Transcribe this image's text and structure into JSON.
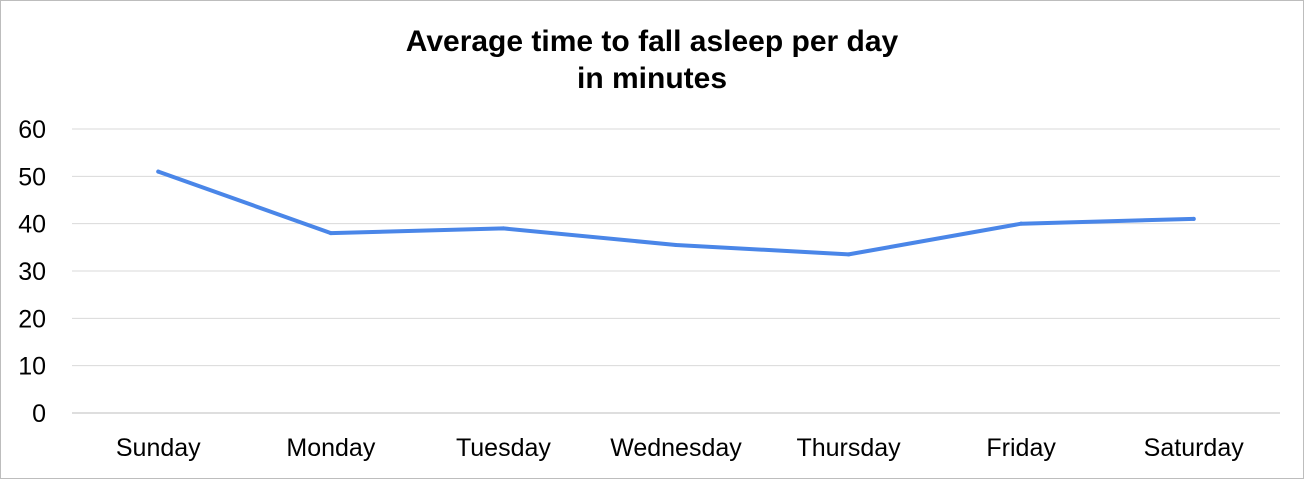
{
  "chart_data": {
    "type": "line",
    "title": "Average time to fall asleep per day",
    "subtitle": "in minutes",
    "xlabel": "",
    "ylabel": "",
    "categories": [
      "Sunday",
      "Monday",
      "Tuesday",
      "Wednesday",
      "Thursday",
      "Friday",
      "Saturday"
    ],
    "series": [
      {
        "values": [
          51,
          38,
          39,
          35.5,
          33.5,
          40,
          41
        ]
      }
    ],
    "ylim": [
      0,
      60
    ],
    "yticks": [
      "0",
      "10",
      "20",
      "30",
      "40",
      "50",
      "60"
    ],
    "grid": true,
    "legend": "none",
    "colors": {
      "line": "#4a86e8",
      "grid": "#d9d9d9",
      "text": "#000000"
    }
  }
}
